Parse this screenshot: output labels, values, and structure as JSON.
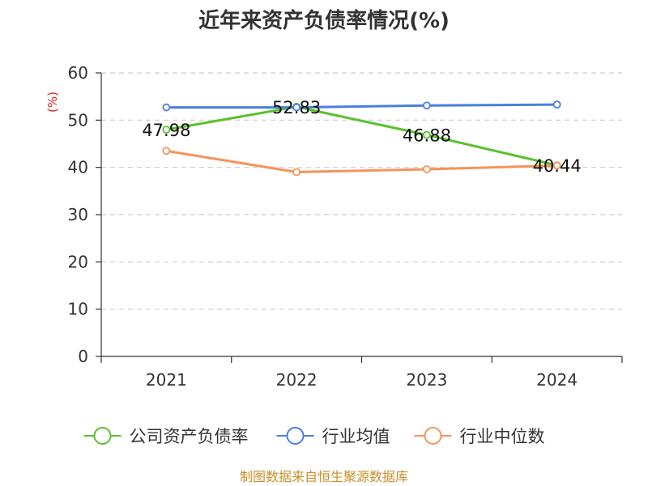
{
  "chart_data": {
    "type": "line",
    "title": "近年来资产负债率情况(%)",
    "ylabel": "(%)",
    "categories": [
      "2021",
      "2022",
      "2023",
      "2024"
    ],
    "ylim": [
      0,
      60
    ],
    "yticks": [
      0,
      10,
      20,
      30,
      40,
      50,
      60
    ],
    "grid": true,
    "legend_position": "bottom",
    "series": [
      {
        "name": "公司资产负债率",
        "values": [
          47.98,
          52.83,
          46.88,
          40.44
        ],
        "color": "#5bc12a",
        "labels": [
          "47.98",
          "52.83",
          "46.88",
          "40.44"
        ]
      },
      {
        "name": "行业均值",
        "values": [
          52.7,
          52.7,
          53.1,
          53.3
        ],
        "color": "#4a7fdc"
      },
      {
        "name": "行业中位数",
        "values": [
          43.5,
          39.0,
          39.6,
          40.4
        ],
        "color": "#f5935c"
      }
    ],
    "source": "制图数据来自恒生聚源数据库"
  }
}
